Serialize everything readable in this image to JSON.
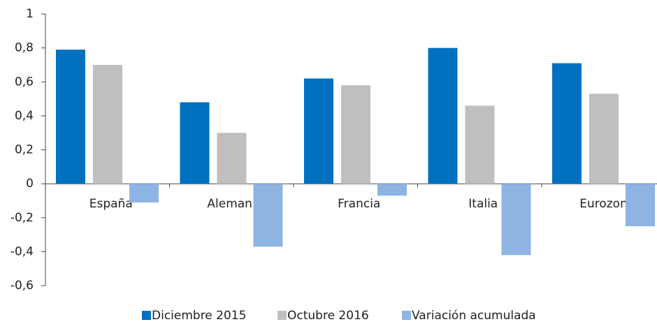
{
  "chart_data": {
    "type": "bar",
    "categories": [
      "España",
      "Alemania",
      "Francia",
      "Italia",
      "Eurozona"
    ],
    "series": [
      {
        "name": "Diciembre 2015",
        "color": "#0070c0",
        "values": [
          0.79,
          0.48,
          0.62,
          0.8,
          0.71
        ]
      },
      {
        "name": "Octubre 2016",
        "color": "#bfbfbf",
        "values": [
          0.7,
          0.3,
          0.58,
          0.46,
          0.53
        ]
      },
      {
        "name": "Variación acumulada",
        "color": "#8db4e2",
        "values": [
          -0.11,
          -0.37,
          -0.07,
          -0.42,
          -0.25
        ]
      }
    ],
    "ylim": [
      -0.6,
      1
    ],
    "yticks": [
      {
        "value": -0.6,
        "label": "-0,6"
      },
      {
        "value": -0.4,
        "label": "-0,4"
      },
      {
        "value": -0.2,
        "label": "-0,2"
      },
      0,
      {
        "value": 0.2,
        "label": "0,2"
      },
      {
        "value": 0.4,
        "label": "0,4"
      },
      {
        "value": 0.6,
        "label": "0,6"
      },
      {
        "value": 0.8,
        "label": "0,8"
      },
      1
    ],
    "legend": "bottom"
  }
}
